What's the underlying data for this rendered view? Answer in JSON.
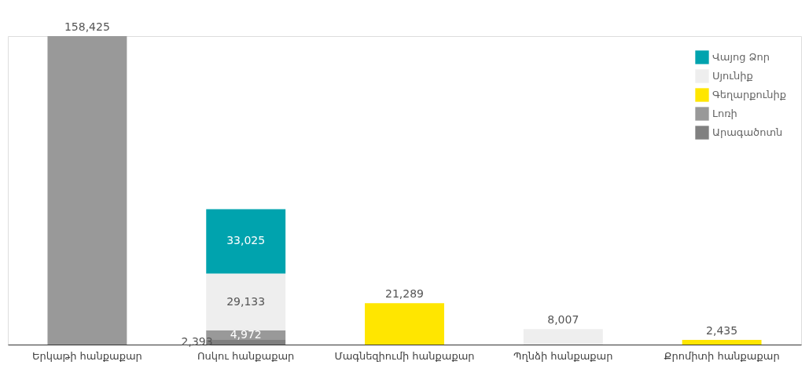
{
  "chart_data": {
    "type": "bar",
    "stacked": true,
    "legend": "top right",
    "categories": [
      "Երկաթի հանքաքար",
      "Ոսկու հանքաքար",
      "Մագնեզիումի հանքաքար",
      "Պղնձի հանքաքար",
      "Քրոմիտի հանքաքար"
    ],
    "series": [
      {
        "name": "Արագածոտն",
        "color": "#808080",
        "values": [
          null,
          2393,
          null,
          null,
          null
        ],
        "value_labels": [
          null,
          "2,393",
          null,
          null,
          null
        ]
      },
      {
        "name": "Լոռի",
        "color": "#999999",
        "values": [
          158425,
          4972,
          null,
          null,
          null
        ],
        "value_labels": [
          "158,425",
          "4,972",
          null,
          null,
          null
        ]
      },
      {
        "name": "Գեղարքունիք",
        "color": "#ffe600",
        "values": [
          null,
          null,
          21289,
          null,
          2435
        ],
        "value_labels": [
          null,
          null,
          "21,289",
          null,
          "2,435"
        ]
      },
      {
        "name": "Սյունիք",
        "color": "#eeeeee",
        "values": [
          null,
          29133,
          null,
          8007,
          null
        ],
        "value_labels": [
          null,
          "29,133",
          null,
          "8,007",
          null
        ]
      },
      {
        "name": "Վայոց Ձոր",
        "color": "#00a3ae",
        "values": [
          null,
          33025,
          null,
          null,
          null
        ],
        "value_labels": [
          null,
          "33,025",
          null,
          null,
          null
        ]
      }
    ]
  }
}
